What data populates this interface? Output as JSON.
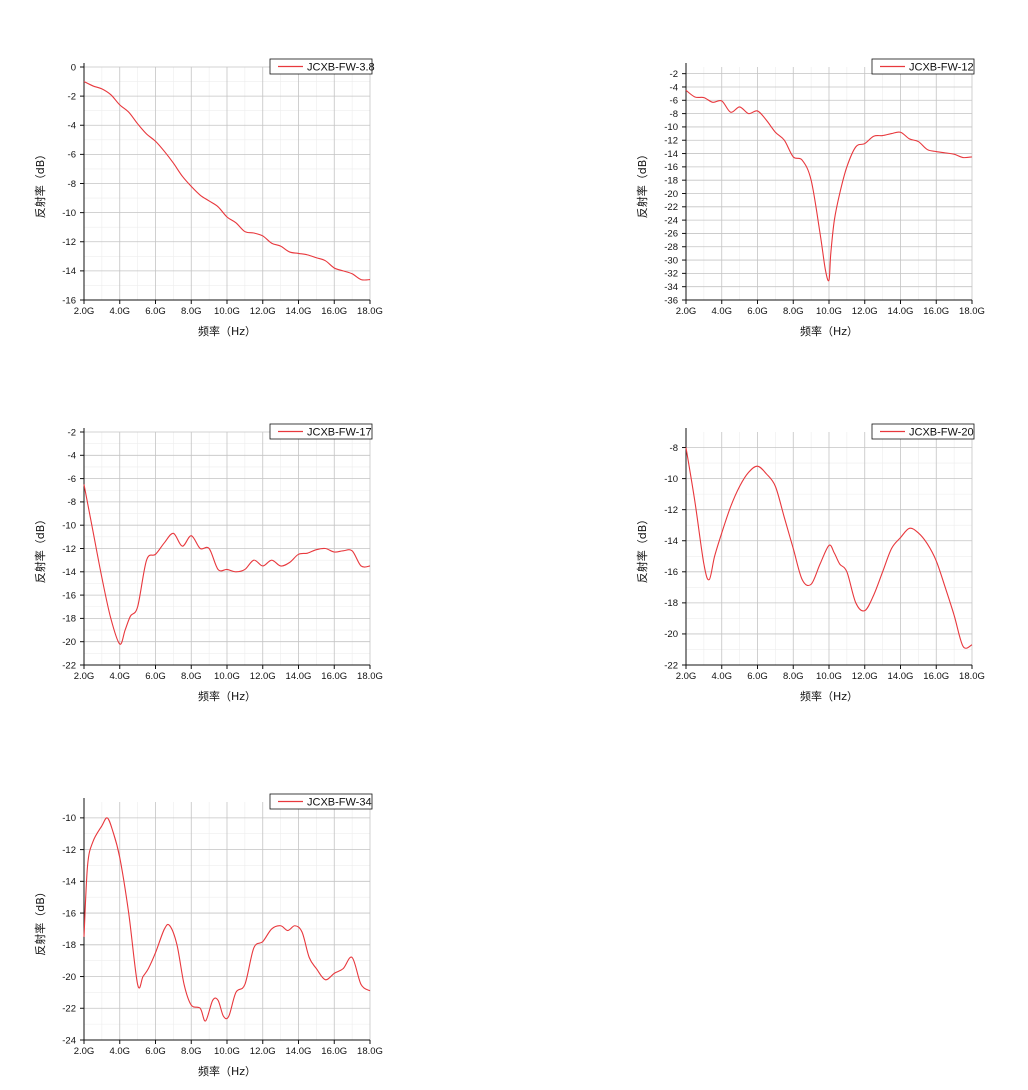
{
  "chart_data": [
    {
      "type": "line",
      "xlabel": "频率（Hz）",
      "ylabel": "反射率（dB）",
      "x_ticks": [
        "2.0G",
        "4.0G",
        "6.0G",
        "8.0G",
        "10.0G",
        "12.0G",
        "14.0G",
        "16.0G",
        "18.0G"
      ],
      "xlim": [
        2,
        18
      ],
      "ylim": [
        -16,
        0
      ],
      "y_ticks": [
        0,
        -2,
        -4,
        -6,
        -8,
        -10,
        -12,
        -14,
        -16
      ],
      "grid": true,
      "legend_position": "top-right",
      "line_color": "#e8383d",
      "series": [
        {
          "name": "JCXB-FW-3.8",
          "x": [
            2.0,
            2.5,
            3.0,
            3.5,
            4.0,
            4.5,
            5.0,
            5.5,
            6.0,
            6.5,
            7.0,
            7.5,
            8.0,
            8.5,
            9.0,
            9.5,
            10.0,
            10.5,
            11.0,
            11.5,
            12.0,
            12.5,
            13.0,
            13.5,
            14.0,
            14.5,
            15.0,
            15.5,
            16.0,
            16.5,
            17.0,
            17.5,
            18.0
          ],
          "values": [
            -1.0,
            -1.3,
            -1.5,
            -1.9,
            -2.6,
            -3.1,
            -3.9,
            -4.6,
            -5.1,
            -5.8,
            -6.6,
            -7.5,
            -8.2,
            -8.8,
            -9.2,
            -9.6,
            -10.3,
            -10.7,
            -11.3,
            -11.4,
            -11.6,
            -12.1,
            -12.3,
            -12.7,
            -12.8,
            -12.9,
            -13.1,
            -13.3,
            -13.8,
            -14.0,
            -14.2,
            -14.6,
            -14.6
          ]
        }
      ]
    },
    {
      "type": "line",
      "xlabel": "频率（Hz）",
      "ylabel": "反射率（dB）",
      "x_ticks": [
        "2.0G",
        "4.0G",
        "6.0G",
        "8.0G",
        "10.0G",
        "12.0G",
        "14.0G",
        "16.0G",
        "18.0G"
      ],
      "xlim": [
        2,
        18
      ],
      "ylim": [
        -36,
        -1
      ],
      "y_ticks": [
        -2,
        -4,
        -6,
        -8,
        -10,
        -12,
        -14,
        -16,
        -18,
        -20,
        -22,
        -24,
        -26,
        -28,
        -30,
        -32,
        -34,
        -36
      ],
      "grid": true,
      "legend_position": "top-right",
      "line_color": "#e8383d",
      "series": [
        {
          "name": "JCXB-FW-12",
          "x": [
            2.0,
            2.5,
            3.0,
            3.5,
            4.0,
            4.5,
            5.0,
            5.5,
            6.0,
            6.5,
            7.0,
            7.5,
            8.0,
            8.5,
            9.0,
            9.5,
            9.8,
            10.0,
            10.1,
            10.3,
            10.6,
            11.0,
            11.5,
            12.0,
            12.5,
            13.0,
            13.5,
            14.0,
            14.5,
            15.0,
            15.5,
            16.0,
            16.5,
            17.0,
            17.5,
            18.0
          ],
          "values": [
            -4.5,
            -5.5,
            -5.6,
            -6.3,
            -6.1,
            -7.8,
            -7.0,
            -8.0,
            -7.6,
            -9.0,
            -10.8,
            -12.0,
            -14.5,
            -15.0,
            -18.0,
            -26.0,
            -31.5,
            -33.0,
            -29.0,
            -24.0,
            -20.0,
            -16.0,
            -13.0,
            -12.5,
            -11.4,
            -11.3,
            -11.0,
            -10.8,
            -11.8,
            -12.2,
            -13.4,
            -13.7,
            -13.9,
            -14.1,
            -14.6,
            -14.5
          ]
        }
      ]
    },
    {
      "type": "line",
      "xlabel": "频率（Hz）",
      "ylabel": "反射率（dB）",
      "x_ticks": [
        "2.0G",
        "4.0G",
        "6.0G",
        "8.0G",
        "10.0G",
        "12.0G",
        "14.0G",
        "16.0G",
        "18.0G"
      ],
      "xlim": [
        2,
        18
      ],
      "ylim": [
        -22,
        -2
      ],
      "y_ticks": [
        -2,
        -4,
        -6,
        -8,
        -10,
        -12,
        -14,
        -16,
        -18,
        -20,
        -22
      ],
      "grid": true,
      "legend_position": "top-right",
      "line_color": "#e8383d",
      "series": [
        {
          "name": "JCXB-FW-17",
          "x": [
            2.0,
            2.5,
            3.0,
            3.5,
            4.0,
            4.3,
            4.6,
            5.0,
            5.5,
            6.0,
            6.5,
            7.0,
            7.5,
            8.0,
            8.5,
            9.0,
            9.5,
            10.0,
            10.5,
            11.0,
            11.5,
            12.0,
            12.5,
            13.0,
            13.5,
            14.0,
            14.5,
            15.0,
            15.5,
            16.0,
            16.5,
            17.0,
            17.5,
            18.0
          ],
          "values": [
            -6.5,
            -10.5,
            -14.5,
            -18.0,
            -20.2,
            -19.0,
            -17.8,
            -17.0,
            -13.0,
            -12.5,
            -11.5,
            -10.7,
            -11.8,
            -10.9,
            -12.0,
            -12.0,
            -13.8,
            -13.8,
            -14.0,
            -13.8,
            -13.0,
            -13.5,
            -13.0,
            -13.5,
            -13.2,
            -12.5,
            -12.4,
            -12.1,
            -12.0,
            -12.3,
            -12.2,
            -12.2,
            -13.5,
            -13.5
          ]
        }
      ]
    },
    {
      "type": "line",
      "xlabel": "频率（Hz）",
      "ylabel": "反射率（dB）",
      "x_ticks": [
        "2.0G",
        "4.0G",
        "6.0G",
        "8.0G",
        "10.0G",
        "12.0G",
        "14.0G",
        "16.0G",
        "18.0G"
      ],
      "xlim": [
        2,
        18
      ],
      "ylim": [
        -22,
        -7
      ],
      "y_ticks": [
        -8,
        -10,
        -12,
        -14,
        -16,
        -18,
        -20,
        -22
      ],
      "grid": true,
      "legend_position": "top-right",
      "line_color": "#e8383d",
      "series": [
        {
          "name": "JCXB-FW-20",
          "x": [
            2.0,
            2.5,
            3.0,
            3.3,
            3.6,
            4.0,
            4.5,
            5.0,
            5.5,
            6.0,
            6.5,
            7.0,
            7.5,
            8.0,
            8.5,
            9.0,
            9.5,
            10.0,
            10.3,
            10.6,
            11.0,
            11.5,
            12.0,
            12.5,
            13.0,
            13.5,
            14.0,
            14.5,
            15.0,
            15.5,
            16.0,
            16.5,
            17.0,
            17.5,
            18.0
          ],
          "values": [
            -8.0,
            -11.5,
            -15.5,
            -16.5,
            -15.0,
            -13.5,
            -11.8,
            -10.5,
            -9.6,
            -9.2,
            -9.7,
            -10.5,
            -12.5,
            -14.5,
            -16.5,
            -16.8,
            -15.5,
            -14.3,
            -14.8,
            -15.5,
            -16.0,
            -18.0,
            -18.5,
            -17.5,
            -16.0,
            -14.5,
            -13.8,
            -13.2,
            -13.5,
            -14.2,
            -15.3,
            -17.0,
            -18.8,
            -20.8,
            -20.7
          ]
        }
      ]
    },
    {
      "type": "line",
      "xlabel": "频率（Hz）",
      "ylabel": "反射率（dB）",
      "x_ticks": [
        "2.0G",
        "4.0G",
        "6.0G",
        "8.0G",
        "10.0G",
        "12.0G",
        "14.0G",
        "16.0G",
        "18.0G"
      ],
      "xlim": [
        2,
        18
      ],
      "ylim": [
        -24,
        -9
      ],
      "y_ticks": [
        -10,
        -12,
        -14,
        -16,
        -18,
        -20,
        -22,
        -24
      ],
      "grid": true,
      "legend_position": "top-right",
      "line_color": "#e8383d",
      "series": [
        {
          "name": "JCXB-FW-34",
          "x": [
            2.0,
            2.2,
            2.5,
            3.0,
            3.3,
            3.6,
            4.0,
            4.5,
            5.0,
            5.3,
            5.6,
            6.0,
            6.5,
            6.8,
            7.2,
            7.6,
            8.0,
            8.5,
            8.8,
            9.2,
            9.5,
            9.8,
            10.1,
            10.5,
            11.0,
            11.5,
            12.0,
            12.5,
            13.0,
            13.4,
            13.8,
            14.2,
            14.6,
            15.0,
            15.5,
            16.0,
            16.5,
            17.0,
            17.5,
            18.0
          ],
          "values": [
            -17.5,
            -13.0,
            -11.5,
            -10.5,
            -10.0,
            -10.8,
            -12.5,
            -16.0,
            -20.5,
            -20.0,
            -19.5,
            -18.5,
            -17.0,
            -16.8,
            -18.0,
            -20.5,
            -21.8,
            -22.0,
            -22.8,
            -21.5,
            -21.5,
            -22.5,
            -22.5,
            -21.0,
            -20.5,
            -18.2,
            -17.8,
            -17.0,
            -16.8,
            -17.1,
            -16.8,
            -17.2,
            -18.8,
            -19.5,
            -20.2,
            -19.8,
            -19.5,
            -18.8,
            -20.5,
            -20.9
          ]
        }
      ]
    }
  ]
}
